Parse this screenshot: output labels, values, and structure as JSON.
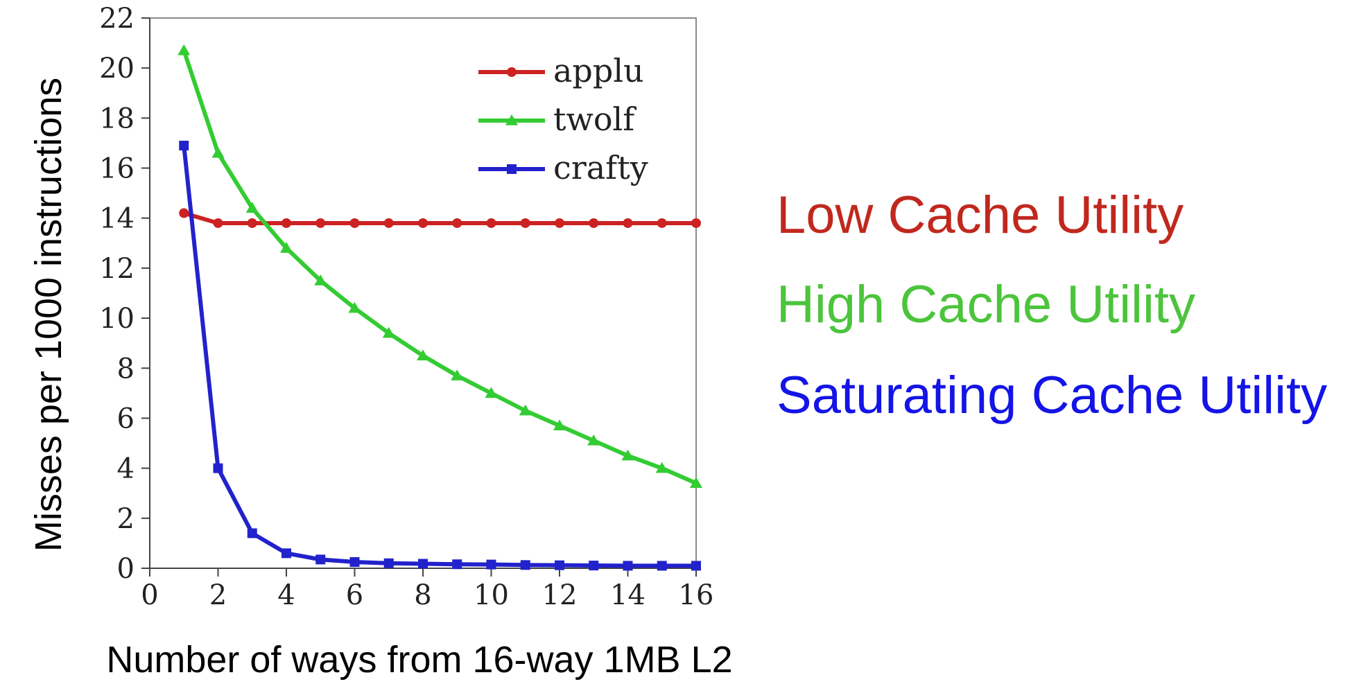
{
  "chart_data": {
    "type": "line",
    "xlabel": "Number of ways from 16-way 1MB L2",
    "ylabel": "Misses per 1000 instructions",
    "xlim": [
      0,
      16
    ],
    "ylim": [
      0,
      22
    ],
    "xticks": [
      0,
      2,
      4,
      6,
      8,
      10,
      12,
      14,
      16
    ],
    "yticks": [
      0,
      2,
      4,
      6,
      8,
      10,
      12,
      14,
      16,
      18,
      20,
      22
    ],
    "grid": false,
    "legend_position": "top-right",
    "x": [
      1,
      2,
      3,
      4,
      5,
      6,
      7,
      8,
      9,
      10,
      11,
      12,
      13,
      14,
      15,
      16
    ],
    "series": [
      {
        "name": "applu",
        "color": "#cc2222",
        "marker": "circle",
        "values": [
          14.2,
          13.8,
          13.8,
          13.8,
          13.8,
          13.8,
          13.8,
          13.8,
          13.8,
          13.8,
          13.8,
          13.8,
          13.8,
          13.8,
          13.8,
          13.8
        ]
      },
      {
        "name": "twolf",
        "color": "#33cc33",
        "marker": "triangle",
        "values": [
          20.7,
          16.6,
          14.4,
          12.8,
          11.5,
          10.4,
          9.4,
          8.5,
          7.7,
          7.0,
          6.3,
          5.7,
          5.1,
          4.5,
          4.0,
          3.4
        ]
      },
      {
        "name": "crafty",
        "color": "#2222cc",
        "marker": "square",
        "values": [
          16.9,
          4.0,
          1.4,
          0.6,
          0.35,
          0.25,
          0.2,
          0.18,
          0.16,
          0.15,
          0.13,
          0.12,
          0.11,
          0.1,
          0.1,
          0.1
        ]
      }
    ]
  },
  "annotations": [
    {
      "text": "Low Cache Utility",
      "color": "#c0281e"
    },
    {
      "text": "High Cache Utility",
      "color": "#4cc43c"
    },
    {
      "text": "Saturating Cache Utility",
      "color": "#1414e6"
    }
  ]
}
